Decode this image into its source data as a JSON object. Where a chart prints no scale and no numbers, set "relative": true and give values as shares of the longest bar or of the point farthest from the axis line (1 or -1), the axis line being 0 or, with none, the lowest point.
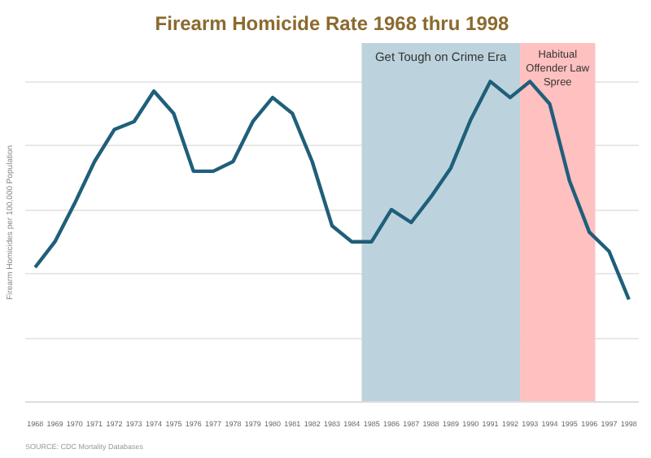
{
  "chart_data": {
    "type": "line",
    "title": "Firearm Homicide Rate 1968 thru 1998",
    "ylabel": "Firearm Homicides per 100,000 Population",
    "relative": true,
    "grid": "y",
    "x": [
      1968,
      1969,
      1970,
      1971,
      1972,
      1973,
      1974,
      1975,
      1976,
      1977,
      1978,
      1979,
      1980,
      1981,
      1982,
      1983,
      1984,
      1985,
      1986,
      1987,
      1988,
      1989,
      1990,
      1991,
      1992,
      1993,
      1994,
      1995,
      1996,
      1997,
      1998
    ],
    "xlim": [
      1967.5,
      1998.5
    ],
    "xticks": [
      1968,
      1969,
      1970,
      1971,
      1972,
      1973,
      1974,
      1975,
      1976,
      1977,
      1978,
      1979,
      1980,
      1981,
      1982,
      1983,
      1984,
      1985,
      1986,
      1987,
      1988,
      1989,
      1990,
      1991,
      1992,
      1993,
      1994,
      1995,
      1996,
      1997,
      1998
    ],
    "series": [
      {
        "color": "#1f5f7a",
        "values": [
          0.42,
          0.5,
          0.62,
          0.75,
          0.85,
          0.875,
          0.97,
          0.9,
          0.72,
          0.72,
          0.75,
          0.875,
          0.95,
          0.9,
          0.75,
          0.55,
          0.5,
          0.5,
          0.6,
          0.56,
          0.64,
          0.73,
          0.88,
          1.0,
          0.95,
          1.0,
          0.93,
          0.69,
          0.53,
          0.47,
          0.32
        ]
      }
    ],
    "bands": [
      {
        "axis": "x",
        "from": 1984.5,
        "to": 1992.5,
        "label": "Get Tough on Crime Era",
        "color": "#bcd3dd"
      },
      {
        "axis": "x",
        "from": 1992.5,
        "to": 1996.3,
        "label": "Habitual\nOffender Law\nSpree",
        "color": "#ffc0c0"
      }
    ],
    "annotations": [
      "SOURCE: CDC Mortality Databases"
    ]
  }
}
